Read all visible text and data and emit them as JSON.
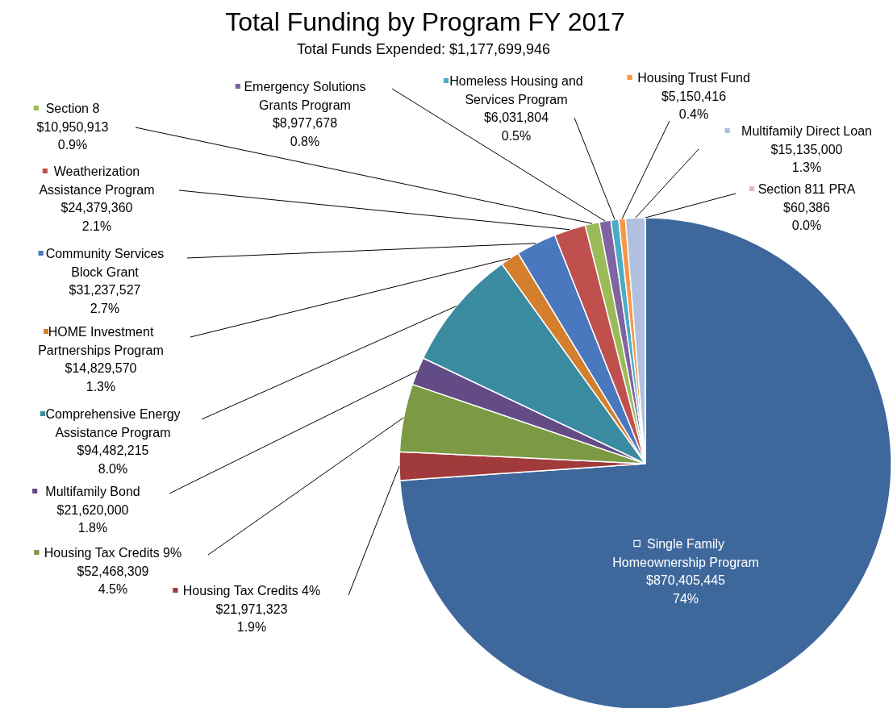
{
  "chart_data": {
    "type": "pie",
    "title": "Total Funding by Program FY 2017",
    "subtitle": "Total Funds Expended: $1,177,699,946",
    "legend": "left",
    "categories": [
      "Single Family Homeownership Program",
      "Housing Tax Credits 4%",
      "Housing Tax Credits 9%",
      "Multifamily Bond",
      "Comprehensive Energy Assistance Program",
      "HOME Investment Partnerships Program",
      "Community Services Block Grant",
      "Weatherization Assistance Program",
      "Section 8",
      "Emergency Solutions Grants Program",
      "Homeless Housing and Services Program",
      "Housing Trust Fund",
      "Multifamily Direct Loan",
      "Section 811 PRA"
    ],
    "values": [
      870405445,
      21971323,
      52468309,
      21620000,
      94482215,
      14829570,
      31237527,
      24379360,
      10950913,
      8977678,
      6031804,
      5150416,
      15135000,
      60386
    ],
    "value_labels": [
      "$870,405,445\n74%",
      "$21,971,323\n1.9%",
      "$52,468,309\n4.5%",
      "$21,620,000\n1.8%",
      "$94,482,215\n8.0%",
      "$14,829,570\n1.3%",
      "$31,237,527\n2.7%",
      "$24,379,360\n2.1%",
      "$10,950,913\n0.9%",
      "$8,977,678\n0.8%",
      "$6,031,804\n0.5%",
      "$5,150,416\n0.4%",
      "$15,135,000\n1.3%",
      "$60,386\n0.0%"
    ],
    "colors": [
      "#3e689b",
      "#a13b3b",
      "#7b9a43",
      "#634b85",
      "#3a8ba0",
      "#d37f2e",
      "#4a78bf",
      "#c0504d",
      "#9bbb59",
      "#8064a2",
      "#4bacc6",
      "#f79646",
      "#b0c0de",
      "#e6b9b8"
    ]
  }
}
